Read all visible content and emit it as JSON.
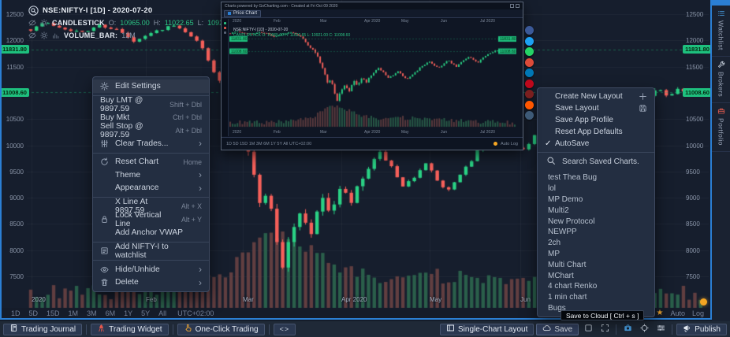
{
  "app": {
    "tooltip": "Save to Cloud [ Ctrl + s ]"
  },
  "chart": {
    "symbol_title": "NSE:NIFTY-I [1D] - 2020-07-20",
    "study1_label": "CANDLESTICK",
    "ohlc": {
      "o_key": "O:",
      "o_val": "10965.00",
      "h_key": "H:",
      "h_val": "11022.65",
      "l_key": "L:",
      "l_val": "10921.00",
      "c_key": "C:",
      "c_val": "11008.60"
    },
    "study2_label": "VOLUME_BAR:",
    "study2_value": "12M",
    "timeframes": [
      "1D",
      "5D",
      "15D",
      "1M",
      "3M",
      "6M",
      "1Y",
      "5Y",
      "All"
    ],
    "timezone": "UTC+02:00",
    "auto_label": "Auto",
    "log_label": "Log",
    "time_axis": [
      "2020",
      "Feb",
      "Mar",
      "Apr 2020",
      "May",
      "Jun"
    ],
    "price_tags": [
      "11831.80",
      "11008.60"
    ]
  },
  "chart_data": {
    "type": "candlestick",
    "symbol": "NSE:NIFTY-I",
    "interval": "1D",
    "title": "NSE:NIFTY-I [1D] - 2020-07-20",
    "last_ohlc": {
      "open": 10965.0,
      "high": 11022.65,
      "low": 10921.0,
      "close": 11008.6
    },
    "volume_label": "12M",
    "y_ticks": [
      12500,
      12000,
      11500,
      10500,
      10000,
      9500,
      9000,
      8500,
      8000,
      7500
    ],
    "ylim": [
      7300,
      12700
    ],
    "levels": [
      11831.8,
      11008.6
    ],
    "x_labels": [
      "2020",
      "Feb",
      "Mar",
      "Apr 2020",
      "May",
      "Jun"
    ],
    "trend_keyframes": [
      [
        0,
        12210
      ],
      [
        0.02,
        12340
      ],
      [
        0.05,
        12230
      ],
      [
        0.08,
        12140
      ],
      [
        0.1,
        12300
      ],
      [
        0.13,
        12200
      ],
      [
        0.155,
        11960
      ],
      [
        0.18,
        12140
      ],
      [
        0.21,
        12290
      ],
      [
        0.235,
        12150
      ],
      [
        0.255,
        11880
      ],
      [
        0.275,
        11380
      ],
      [
        0.29,
        11180
      ],
      [
        0.305,
        10850
      ],
      [
        0.32,
        10050
      ],
      [
        0.335,
        9350
      ],
      [
        0.345,
        8800
      ],
      [
        0.355,
        9150
      ],
      [
        0.365,
        8350
      ],
      [
        0.375,
        7640
      ],
      [
        0.388,
        8320
      ],
      [
        0.402,
        8680
      ],
      [
        0.418,
        8340
      ],
      [
        0.432,
        8980
      ],
      [
        0.448,
        8750
      ],
      [
        0.463,
        9170
      ],
      [
        0.478,
        8890
      ],
      [
        0.493,
        9300
      ],
      [
        0.508,
        9630
      ],
      [
        0.523,
        9870
      ],
      [
        0.54,
        9540
      ],
      [
        0.555,
        9170
      ],
      [
        0.572,
        9400
      ],
      [
        0.588,
        9660
      ],
      [
        0.603,
        9410
      ],
      [
        0.62,
        9100
      ],
      [
        0.637,
        9340
      ],
      [
        0.653,
        9620
      ],
      [
        0.67,
        9960
      ],
      [
        0.688,
        10180
      ],
      [
        0.703,
        10290
      ],
      [
        0.718,
        10050
      ],
      [
        0.733,
        9890
      ],
      [
        0.75,
        10150
      ],
      [
        0.765,
        10390
      ],
      [
        0.78,
        10170
      ],
      [
        0.795,
        9950
      ],
      [
        0.81,
        10230
      ],
      [
        0.825,
        10490
      ],
      [
        0.84,
        10640
      ],
      [
        0.855,
        10420
      ],
      [
        0.87,
        10200
      ],
      [
        0.885,
        10500
      ],
      [
        0.9,
        10760
      ],
      [
        0.918,
        10940
      ],
      [
        0.936,
        11080
      ],
      [
        0.952,
        10890
      ],
      [
        0.968,
        11130
      ],
      [
        0.984,
        10950
      ],
      [
        1,
        11010
      ]
    ]
  },
  "context_menu": {
    "sections": [
      [
        {
          "icon": "gear-icon",
          "label": "Edit Settings",
          "highlighted": true
        }
      ],
      [
        {
          "label": "Buy LMT @ 9897.59",
          "shortcut": "Shift + Dbl"
        },
        {
          "label": "Buy Mkt",
          "shortcut": "Ctrl + Dbl"
        },
        {
          "label": "Sell Stop @ 9897.59",
          "shortcut": "Alt + Dbl"
        },
        {
          "icon": "sliders-icon",
          "label": "Clear Trades...",
          "submenu": true
        }
      ],
      [
        {
          "icon": "reset-icon",
          "label": "Reset Chart",
          "shortcut": "Home"
        },
        {
          "label": "Theme",
          "submenu": true,
          "indent": true
        },
        {
          "label": "Appearance",
          "submenu": true,
          "indent": true
        }
      ],
      [
        {
          "label": "X Line At 9897.59",
          "shortcut": "Alt + X",
          "indent": true
        },
        {
          "icon": "lock-icon",
          "label": "Lock Vertical Line",
          "shortcut": "Alt + Y"
        },
        {
          "label": "Add Anchor VWAP",
          "indent": true
        }
      ],
      [
        {
          "icon": "watchlist-add-icon",
          "label": "Add NIFTY-I to watchlist"
        }
      ],
      [
        {
          "icon": "eye-icon",
          "label": "Hide/Unhide",
          "submenu": true
        },
        {
          "icon": "trash-icon",
          "label": "Delete",
          "submenu": true
        }
      ]
    ]
  },
  "layout_menu": {
    "items": [
      {
        "label": "Create New Layout",
        "right_icon": "plus-icon"
      },
      {
        "label": "Save Layout",
        "right_icon": "disk-icon"
      },
      {
        "label": "Save App Profile"
      },
      {
        "label": "Reset App Defaults"
      },
      {
        "label": "AutoSave",
        "checked": true
      }
    ]
  },
  "saved_charts": {
    "search_label": "Search Saved Charts.",
    "items": [
      "test Thea Bug",
      "lol",
      "MP Demo",
      "Multi2",
      "New Protocol",
      "NEWPP",
      "2ch",
      "MP",
      "Multi Chart",
      "MChart",
      "4 chart Renko",
      "1 min chart",
      "Bugs"
    ]
  },
  "popup": {
    "title": "Charts powered by GoCharting.com - Created at Fri Oct 09 2020",
    "tab_label": "Price Chart",
    "legend_line1": "NSE:NIFTY-I [1D] - 2020-07-20",
    "legend_line2": "CANDLESTICK O: 10965.00 H: 11022.65 L: 10921.00 C: 11008.60",
    "months": [
      "2020",
      "Feb",
      "Mar",
      "Apr 2020",
      "May",
      "Jun",
      "Jul 2020"
    ],
    "price_tags": [
      "11831.80",
      "11008.60"
    ],
    "footer_left": "1D 5D 15D 1M 3M 6M 1Y 5Y All   UTC+02:00",
    "footer_right": "Auto  Log",
    "share_icons": [
      {
        "name": "share-facebook-icon",
        "color": "#3b5998"
      },
      {
        "name": "share-twitter-icon",
        "color": "#1da1f2"
      },
      {
        "name": "share-whatsapp-icon",
        "color": "#25d366"
      },
      {
        "name": "share-googleplus-icon",
        "color": "#dd4b39"
      },
      {
        "name": "share-linkedin-icon",
        "color": "#0077b5"
      },
      {
        "name": "share-pinterest-icon",
        "color": "#bd081c"
      },
      {
        "name": "share-youtube-icon",
        "color": "#7a1f1f"
      },
      {
        "name": "share-reddit-icon",
        "color": "#ff5700"
      },
      {
        "name": "share-tumblr-icon",
        "color": "#3e5a77"
      }
    ]
  },
  "bottom_bar": {
    "left": [
      {
        "icon": "journal-icon",
        "label": "Trading Journal"
      },
      {
        "icon": "rocket-icon",
        "label": "Trading Widget",
        "icon_color": "#e2574c"
      },
      {
        "icon": "finger-icon",
        "label": "One-Click Trading",
        "icon_color": "#f0a731"
      },
      {
        "label": "<>",
        "code": true,
        "name": "code-snippet-button"
      }
    ],
    "right": [
      {
        "icon": "layout-icon",
        "label": "Single-Chart Layout",
        "name": "single-chart-layout-button"
      },
      {
        "icon": "cloud-icon",
        "label": "Save",
        "active": true,
        "name": "save-button"
      },
      {
        "icon": "checkbox-icon",
        "name": "checkbox-button"
      },
      {
        "icon": "expand-icon",
        "name": "fullscreen-button"
      },
      {
        "divider": true
      },
      {
        "icon": "camera-icon",
        "icon_color": "#4aa3e8",
        "name": "screenshot-button"
      },
      {
        "icon": "crosshair-icon",
        "name": "crosshair-button"
      },
      {
        "icon": "sliders-h-icon",
        "name": "settings-sliders-button"
      },
      {
        "divider": true
      },
      {
        "icon": "megaphone-icon",
        "label": "Publish",
        "name": "publish-button"
      }
    ]
  },
  "sidebar": {
    "tabs": [
      {
        "label": "Watchlist",
        "icon": "list-icon",
        "icon_color": "#4aa3e8"
      },
      {
        "label": "Brokers",
        "icon": "wrench-icon",
        "icon_color": "#c9d2de"
      },
      {
        "label": "Portfolio",
        "icon": "portfolio-icon",
        "icon_color": "#e05a4e"
      }
    ]
  },
  "colors": {
    "up": "#2ad184",
    "down": "#f7605a",
    "vol_up": "#2e6b50",
    "vol_down": "#6e4444",
    "accent": "#2b7fd4",
    "tag_green": "#1ec07e",
    "star": "#f0a731",
    "dot": "#f5a623"
  }
}
